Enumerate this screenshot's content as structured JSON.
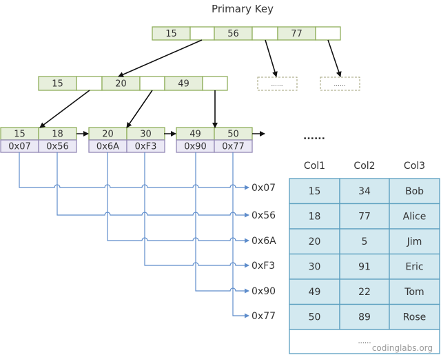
{
  "title": "Primary Key",
  "colors": {
    "key_fill": "#e7efdc",
    "key_border": "#8fae5a",
    "addr_fill": "#ebe9f5",
    "addr_border": "#9389b5",
    "table_fill": "#d3e9f0",
    "table_border": "#5a9fbf",
    "pointer_line": "#5d8ccb",
    "arrow": "#111111"
  },
  "root": {
    "keys": [
      "15",
      "56",
      "77"
    ]
  },
  "level2": {
    "keys": [
      "15",
      "20",
      "49"
    ],
    "placeholders": [
      "......",
      "......"
    ]
  },
  "leaves": [
    {
      "keys": [
        "15",
        "18"
      ],
      "addrs": [
        "0x07",
        "0x56"
      ]
    },
    {
      "keys": [
        "20",
        "30"
      ],
      "addrs": [
        "0x6A",
        "0xF3"
      ]
    },
    {
      "keys": [
        "49",
        "50"
      ],
      "addrs": [
        "0x90",
        "0x77"
      ]
    }
  ],
  "leaf_more": "......",
  "pointers": [
    "0x07",
    "0x56",
    "0x6A",
    "0xF3",
    "0x90",
    "0x77"
  ],
  "table": {
    "headers": [
      "Col1",
      "Col2",
      "Col3"
    ],
    "rows": [
      [
        "15",
        "34",
        "Bob"
      ],
      [
        "18",
        "77",
        "Alice"
      ],
      [
        "20",
        "5",
        "Jim"
      ],
      [
        "30",
        "91",
        "Eric"
      ],
      [
        "49",
        "22",
        "Tom"
      ],
      [
        "50",
        "89",
        "Rose"
      ]
    ],
    "more": "......"
  },
  "watermark": "codinglabs.org"
}
